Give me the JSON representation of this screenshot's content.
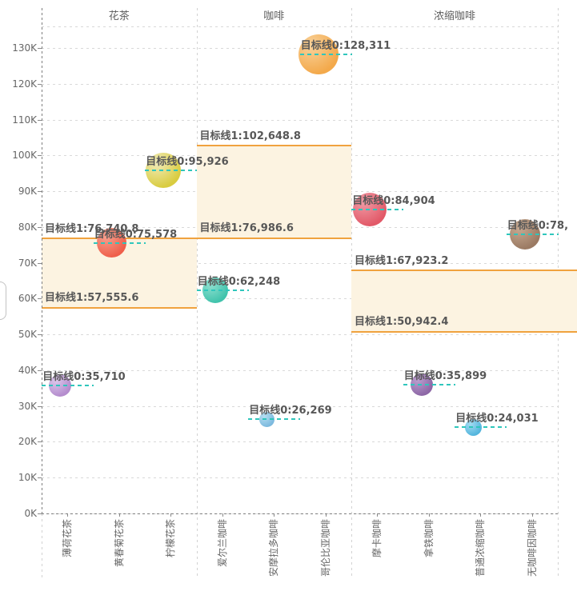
{
  "page": {
    "background": "#ffffff"
  },
  "side_widget": {
    "type": "edge-slider-handle"
  },
  "chart_data": {
    "type": "scatter",
    "title": "",
    "legend": "none",
    "grid": "dashed",
    "y_axis": {
      "min": 0,
      "max": 130000,
      "tick_labels": [
        "0K",
        "10K",
        "20K",
        "30K",
        "40K",
        "50K",
        "60K",
        "70K",
        "80K",
        "90K",
        "100K",
        "110K",
        "120K",
        "130K"
      ]
    },
    "colors": {
      "target_line": "#f0a23e",
      "target_band_fill": "#fcf3e1",
      "marker_reference_dash": "#2fc6bc",
      "label_text": "#575757",
      "grid_line": "#d9d9d9",
      "axis_line": "#7f7f7f",
      "tick_text": "#666666"
    },
    "panels": [
      {
        "title": "花茶",
        "categories": [
          "薄荷花茶",
          "黄春菊花茶",
          "柠檬花茶"
        ],
        "target_lines": [
          {
            "label": "目标线1:57,555.6",
            "value": 57555.6
          },
          {
            "label": "目标线1:76,740.8",
            "value": 76740.8
          }
        ],
        "points": [
          {
            "category": "薄荷花茶",
            "label": "目标线0:35,710",
            "value": 35710,
            "diameter": 28,
            "color": "#b48ccd",
            "highlight": "#ddc8ec"
          },
          {
            "category": "黄春菊花茶",
            "label": "目标线0:75,578",
            "value": 75578,
            "diameter": 37,
            "color": "#ef5f4b",
            "highlight": "#f7a18f"
          },
          {
            "category": "柠檬花茶",
            "label": "目标线0:95,926",
            "value": 95926,
            "diameter": 44,
            "color": "#d9cc40",
            "highlight": "#f1ecbb"
          }
        ]
      },
      {
        "title": "咖啡",
        "categories": [
          "爱尔兰咖啡",
          "安摩拉多咖啡",
          "哥伦比亚咖啡"
        ],
        "target_lines": [
          {
            "label": "目标线1:76,986.6",
            "value": 76986.6
          },
          {
            "label": "目标线1:102,648.8",
            "value": 102648.8
          }
        ],
        "points": [
          {
            "category": "爱尔兰咖啡",
            "label": "目标线0:62,248",
            "value": 62248,
            "diameter": 32,
            "color": "#41c3ac",
            "highlight": "#8fe0d0"
          },
          {
            "category": "安摩拉多咖啡",
            "label": "目标线0:26,269",
            "value": 26269,
            "diameter": 19,
            "color": "#7cb9de",
            "highlight": "#b5dff2"
          },
          {
            "category": "哥伦比亚咖啡",
            "label": "目标线0:128,311",
            "value": 128311,
            "diameter": 50,
            "color": "#f3a94b",
            "highlight": "#f9d29b"
          }
        ]
      },
      {
        "title": "浓缩咖啡",
        "categories": [
          "摩卡咖啡",
          "拿铁咖啡",
          "普通浓缩咖啡",
          "无咖啡因咖啡"
        ],
        "band_extends_to_edge": true,
        "target_lines": [
          {
            "label": "目标线1:50,942.4",
            "value": 50942.4
          },
          {
            "label": "目标线1:67,923.2",
            "value": 67923.2
          }
        ],
        "points": [
          {
            "category": "摩卡咖啡",
            "label": "目标线0:84,904",
            "value": 84904,
            "diameter": 42,
            "color": "#e25968",
            "highlight": "#f09aa5"
          },
          {
            "category": "拿铁咖啡",
            "label": "目标线0:35,899",
            "value": 35899,
            "diameter": 28,
            "color": "#8d67a6",
            "highlight": "#bda0d0"
          },
          {
            "category": "普通浓缩咖啡",
            "label": "目标线0:24,031",
            "value": 24031,
            "diameter": 21,
            "color": "#53b5dd",
            "highlight": "#a3dcf2"
          },
          {
            "category": "无咖啡因咖啡",
            "label": "目标线0:78,",
            "value": 78000,
            "diameter": 38,
            "color": "#9b7a63",
            "highlight": "#c8ab93",
            "label_clipped": true
          }
        ]
      }
    ]
  }
}
